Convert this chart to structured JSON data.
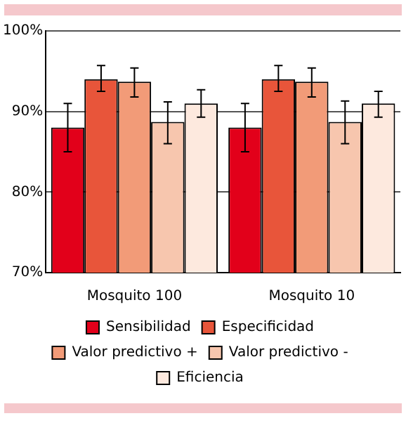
{
  "chart_data": {
    "type": "bar",
    "categories": [
      "Mosquito 100",
      "Mosquito 10"
    ],
    "series": [
      {
        "name": "Sensibilidad",
        "color": "#e2001a",
        "values": [
          88.0,
          88.0
        ],
        "errors": [
          [
            85.0,
            91.0
          ],
          [
            85.0,
            91.0
          ]
        ]
      },
      {
        "name": "Especificidad",
        "color": "#e8553a",
        "values": [
          94.0,
          94.0
        ],
        "errors": [
          [
            92.5,
            95.7
          ],
          [
            92.5,
            95.7
          ]
        ]
      },
      {
        "name": "Valor predictivo +",
        "color": "#f29b78",
        "values": [
          93.7,
          93.7
        ],
        "errors": [
          [
            91.8,
            95.4
          ],
          [
            91.8,
            95.4
          ]
        ]
      },
      {
        "name": "Valor predictivo -",
        "color": "#f7c6ae",
        "values": [
          88.7,
          88.7
        ],
        "errors": [
          [
            86.0,
            91.2
          ],
          [
            86.0,
            91.3
          ]
        ]
      },
      {
        "name": "Eficiencia",
        "color": "#fde9de",
        "values": [
          91.0,
          91.0
        ],
        "errors": [
          [
            89.3,
            92.7
          ],
          [
            89.3,
            92.5
          ]
        ]
      }
    ],
    "ylim": [
      70,
      100
    ],
    "yticks": [
      {
        "value": 70,
        "label": "70%"
      },
      {
        "value": 80,
        "label": "80%"
      },
      {
        "value": 90,
        "label": "90%"
      },
      {
        "value": 100,
        "label": "100%"
      }
    ],
    "grid": "y",
    "legend": "bottom"
  }
}
